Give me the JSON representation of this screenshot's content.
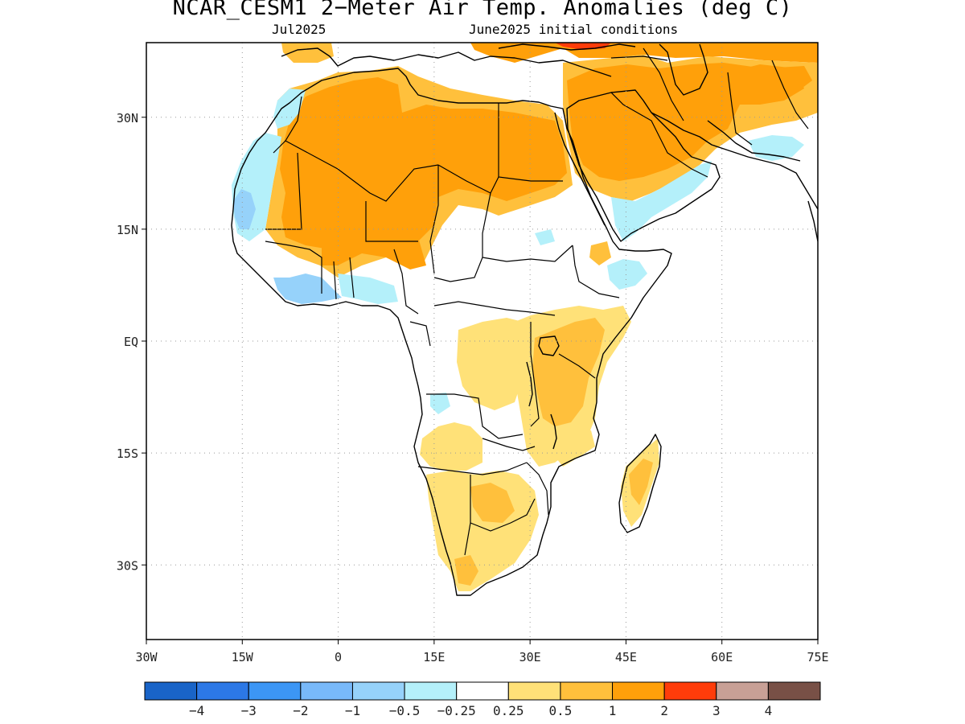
{
  "header": {
    "title": "NCAR_CESM1 2−Meter Air Temp. Anomalies (deg C)",
    "left_subtitle": "Jul2025",
    "right_subtitle": "June2025 initial conditions"
  },
  "map": {
    "projection": "cylindrical equidistant",
    "lon_range": [
      -30,
      75
    ],
    "lat_range": [
      -40,
      40
    ],
    "gridlines": "dotted",
    "lat_ticks": [
      {
        "value": 30,
        "label": "30N"
      },
      {
        "value": 15,
        "label": "15N"
      },
      {
        "value": 0,
        "label": "EQ"
      },
      {
        "value": -15,
        "label": "15S"
      },
      {
        "value": -30,
        "label": "30S"
      }
    ],
    "lon_ticks": [
      {
        "value": -30,
        "label": "30W"
      },
      {
        "value": -15,
        "label": "15W"
      },
      {
        "value": 0,
        "label": "0"
      },
      {
        "value": 15,
        "label": "15E"
      },
      {
        "value": 30,
        "label": "30E"
      },
      {
        "value": 45,
        "label": "45E"
      },
      {
        "value": 60,
        "label": "60E"
      },
      {
        "value": 75,
        "label": "75E"
      }
    ],
    "anomaly_regions": [
      {
        "region": "Sahara",
        "level": "1 to 2"
      },
      {
        "region": "Arabian Peninsula",
        "level": "1 to 2"
      },
      {
        "region": "Iran / Middle East",
        "level": "1 to 2"
      },
      {
        "region": "Turkey / Black Sea",
        "level": "2 to 3"
      },
      {
        "region": "Sahel",
        "level": "1 to 2"
      },
      {
        "region": "East Africa",
        "level": "0.5 to 1"
      },
      {
        "region": "Central Africa",
        "level": "0.25 to 0.5"
      },
      {
        "region": "Southern Africa",
        "level": "0.25 to 0.5"
      },
      {
        "region": "Madagascar",
        "level": "0.5 to 1"
      },
      {
        "region": "West African coast",
        "level": "-1 to -0.25"
      },
      {
        "region": "Horn of Africa",
        "level": "-0.5 to -0.25"
      },
      {
        "region": "Red Sea / Gulf of Aden coasts",
        "level": "-0.5 to -0.25"
      }
    ]
  },
  "colorbar": {
    "colors": [
      "#1964c8",
      "#2c78e6",
      "#3c96f5",
      "#78b9fa",
      "#96d2fa",
      "#b4f0fa",
      "#ffffff",
      "#ffe178",
      "#ffc03c",
      "#ffa00a",
      "#ff3c0a",
      "#c8a096",
      "#785046"
    ],
    "labels": [
      "−4",
      "−3",
      "−2",
      "−1",
      "−0.5",
      "−0.25",
      "0.25",
      "0.5",
      "1",
      "2",
      "3",
      "4"
    ]
  }
}
